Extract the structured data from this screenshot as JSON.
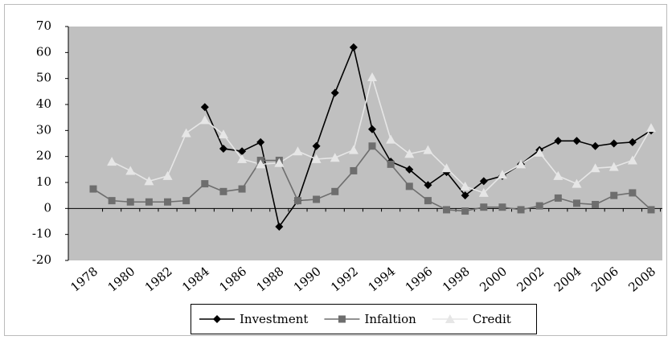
{
  "chart_data": {
    "type": "line",
    "categories": [
      "1978",
      null,
      "1980",
      null,
      "1982",
      null,
      "1984",
      null,
      "1986",
      null,
      "1988",
      null,
      "1990",
      null,
      "1992",
      null,
      "1994",
      null,
      "1996",
      null,
      "1998",
      null,
      "2000",
      null,
      "2002",
      null,
      "2004",
      null,
      "2006",
      null,
      "2008"
    ],
    "series": [
      {
        "name": "Investment",
        "color": "#000000",
        "marker": "diamond",
        "values": [
          null,
          null,
          null,
          null,
          null,
          null,
          39,
          23,
          22,
          25.5,
          -7,
          3,
          24,
          44.5,
          62,
          30.5,
          18,
          15,
          9,
          14,
          5,
          10.5,
          12.5,
          17,
          22.5,
          26,
          26,
          24,
          25,
          25.5,
          30
        ]
      },
      {
        "name": "Infaltion",
        "color": "#6e6e6e",
        "marker": "square",
        "values": [
          7.5,
          3,
          2.5,
          2.5,
          2.5,
          3,
          9.5,
          6.5,
          7.5,
          18.5,
          18.5,
          3,
          3.5,
          6.5,
          14.5,
          24,
          17,
          8.5,
          3,
          -0.5,
          -1,
          0.5,
          0.5,
          -0.5,
          1,
          4,
          2,
          1.5,
          5,
          6,
          -0.5
        ]
      },
      {
        "name": "Credit",
        "color": "#e6e6e6",
        "marker": "triangle",
        "values": [
          null,
          18,
          14.5,
          10.5,
          12.5,
          29,
          34,
          28.5,
          19,
          17,
          17.5,
          22,
          19,
          19.5,
          22.5,
          50.5,
          26.5,
          21,
          22.5,
          15.5,
          8.5,
          6,
          13,
          17,
          21.5,
          12.5,
          9.5,
          15.5,
          16,
          18.5,
          31
        ]
      }
    ],
    "ylim": [
      -20,
      70
    ],
    "yticks": [
      -20,
      -10,
      0,
      10,
      20,
      30,
      40,
      50,
      60,
      70
    ],
    "plot_background": "#c0c0c0",
    "legend": "bottom"
  }
}
